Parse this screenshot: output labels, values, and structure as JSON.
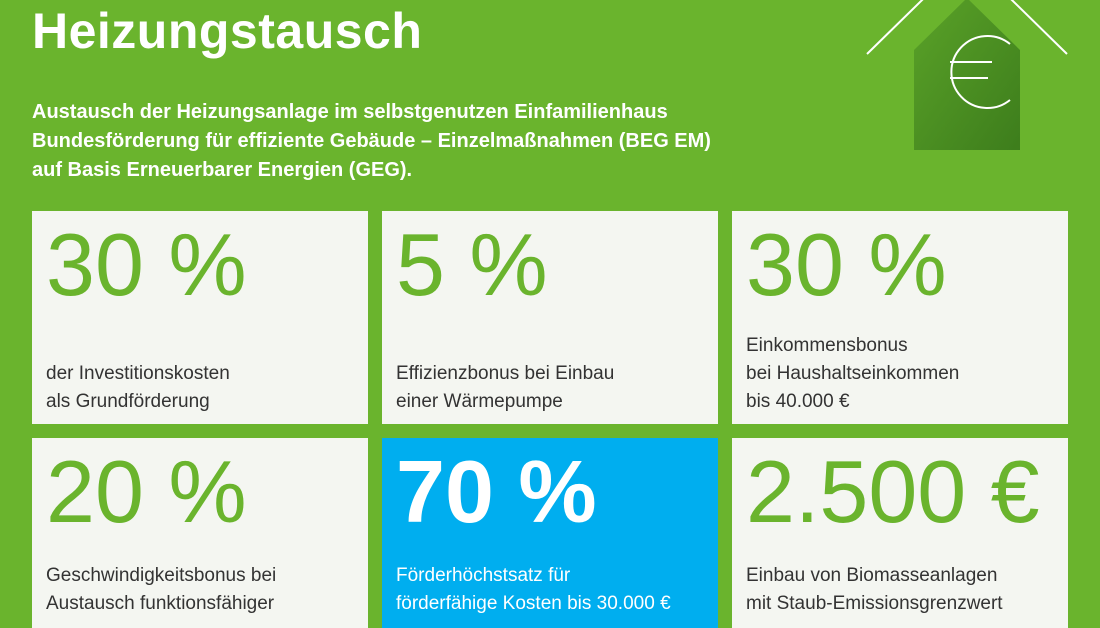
{
  "title": "Heizungstausch",
  "subtitle": [
    "Austausch der Heizungsanlage im selbstgenutzen Einfamilienhaus",
    "Bundesförderung für effiziente Gebäude – Einzelmaßnahmen (BEG EM)",
    "auf Basis Erneuerbarer Energien (GEG)."
  ],
  "icon": "house-euro-icon",
  "colors": {
    "background": "#6ab42d",
    "card": "#f4f6f1",
    "highlight": "#00aeef"
  },
  "cards": [
    {
      "value": "30 %",
      "lines": [
        "der Investitionskosten",
        "als Grundförderung"
      ]
    },
    {
      "value": "5 %",
      "lines": [
        "Effizienzbonus bei Einbau",
        "einer Wärmepumpe"
      ]
    },
    {
      "value": "30 %",
      "lines": [
        "Einkommensbonus",
        "bei Haushaltseinkommen",
        "bis 40.000 €"
      ]
    },
    {
      "value": "20 %",
      "lines": [
        "Geschwindigkeitsbonus bei",
        "Austausch funktionsfähiger"
      ]
    },
    {
      "value": "70 %",
      "lines": [
        "Förderhöchstsatz für",
        "förderfähige Kosten bis 30.000 €"
      ]
    },
    {
      "value": "2.500 €",
      "lines": [
        "Einbau von Biomasseanlagen",
        "mit Staub-Emissionsgrenzwert"
      ]
    }
  ]
}
